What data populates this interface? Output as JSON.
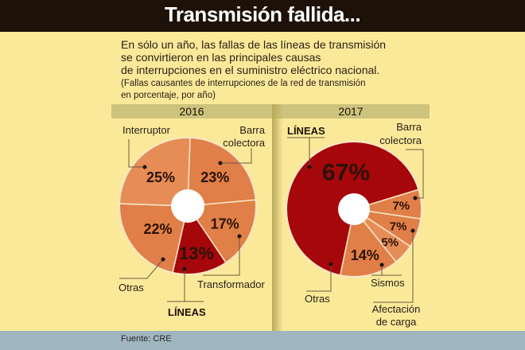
{
  "header": {
    "title": "Transmisión fallida..."
  },
  "intro": {
    "lines": [
      "En sólo un año, las fallas de las líneas de transmisión",
      "se convirtieron en las principales causas",
      "de interrupciones en el suministro eléctrico nacional."
    ],
    "note_lines": [
      "(Fallas causantes de interrupciones de la red de transmisión",
      "en porcentaje, por año)"
    ]
  },
  "footer": {
    "source": "Fuente: CRE"
  },
  "colors": {
    "red": "#a6070b",
    "orange": "#e07f47",
    "orange_light": "#e68d57",
    "background": "#fbe99a",
    "band": "#cdc37d"
  },
  "chart_data": [
    {
      "type": "pie",
      "title": "2016",
      "unit": "%",
      "slices": [
        {
          "label": "Barra colectora",
          "value": 23,
          "display": "23%",
          "color": "#e07f47"
        },
        {
          "label": "Transformador",
          "value": 17,
          "display": "17%",
          "color": "#e07f47"
        },
        {
          "label": "LÍNEAS",
          "value": 13,
          "display": "13%",
          "color": "#a6070b"
        },
        {
          "label": "Otras",
          "value": 22,
          "display": "22%",
          "color": "#e07f47"
        },
        {
          "label": "Interruptor",
          "value": 25,
          "display": "25%",
          "color": "#e68d57"
        }
      ]
    },
    {
      "type": "pie",
      "title": "2017",
      "unit": "%",
      "slices": [
        {
          "label": "Barra colectora",
          "value": 7,
          "display": "7%",
          "color": "#e07f47"
        },
        {
          "label": "Afectación de carga",
          "value": 7,
          "display": "7%",
          "color": "#e07f47"
        },
        {
          "label": "Sismos",
          "value": 5,
          "display": "5%",
          "color": "#e68d57"
        },
        {
          "label": "Otras",
          "value": 14,
          "display": "14%",
          "color": "#e07f47"
        },
        {
          "label": "LÍNEAS",
          "value": 67,
          "display": "67%",
          "color": "#a6070b"
        }
      ]
    }
  ]
}
